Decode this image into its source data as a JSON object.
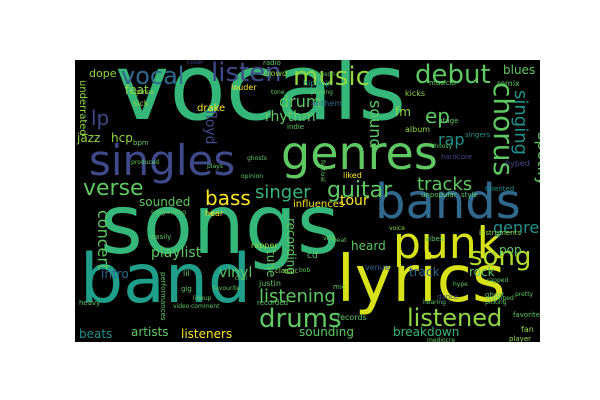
{
  "palette": {
    "background": "#000000",
    "page": "#ffffff",
    "green": "#35b779",
    "teal": "#21918c",
    "blue": "#31688e",
    "purple": "#443983",
    "yellow": "#d8e219",
    "lightgreen": "#90d743"
  },
  "words": [
    {
      "text": "vocals",
      "color": "#35b779"
    },
    {
      "text": "songs",
      "color": "#35b779"
    },
    {
      "text": "band",
      "color": "#1f9e89"
    },
    {
      "text": "lyrics",
      "color": "#d8e219"
    },
    {
      "text": "singles",
      "color": "#3e4a89"
    },
    {
      "text": "genres",
      "color": "#5ec962"
    },
    {
      "text": "bands",
      "color": "#31688e"
    },
    {
      "text": "punk",
      "color": "#d8e219"
    },
    {
      "text": "drums",
      "color": "#5ec962"
    },
    {
      "text": "listened",
      "color": "#90d743"
    },
    {
      "text": "chorus",
      "color": "#5ec962"
    },
    {
      "text": "debut",
      "color": "#5ec962"
    },
    {
      "text": "song",
      "color": "#b5de2b"
    },
    {
      "text": "music",
      "color": "#90d743"
    },
    {
      "text": "listen",
      "color": "#3e4a89"
    },
    {
      "text": "vocal",
      "color": "#31688e"
    },
    {
      "text": "guitar",
      "color": "#5ec962"
    },
    {
      "text": "verse",
      "color": "#5ec962"
    },
    {
      "text": "bass",
      "color": "#fde725"
    },
    {
      "text": "singer",
      "color": "#35b779"
    },
    {
      "text": "tracks",
      "color": "#5ec962"
    },
    {
      "text": "listening",
      "color": "#5ec962"
    },
    {
      "text": "singing",
      "color": "#21918c"
    },
    {
      "text": "spotify",
      "color": "#5ec962"
    },
    {
      "text": "rap",
      "color": "#21918c"
    },
    {
      "text": "ep",
      "color": "#5ec962"
    },
    {
      "text": "lp",
      "color": "#3e4a89"
    },
    {
      "text": "genre",
      "color": "#21918c"
    },
    {
      "text": "concert",
      "color": "#5ec962"
    },
    {
      "text": "drum",
      "color": "#5ec962"
    },
    {
      "text": "sound",
      "color": "#5ec962"
    },
    {
      "text": "tour",
      "color": "#fde725"
    },
    {
      "text": "rhythm",
      "color": "#5ec962"
    },
    {
      "text": "blues",
      "color": "#5ec962"
    },
    {
      "text": "rock",
      "color": "#5ec962"
    },
    {
      "text": "pop",
      "color": "#5ec962"
    },
    {
      "text": "playlist",
      "color": "#5ec962"
    },
    {
      "text": "breakdown",
      "color": "#35b779"
    },
    {
      "text": "intro",
      "color": "#31688e"
    },
    {
      "text": "vinyl",
      "color": "#5ec962"
    },
    {
      "text": "recording",
      "color": "#5ec962"
    },
    {
      "text": "tune",
      "color": "#5ec962"
    },
    {
      "text": "heard",
      "color": "#5ec962"
    },
    {
      "text": "beats",
      "color": "#21918c"
    },
    {
      "text": "artists",
      "color": "#5ec962"
    },
    {
      "text": "listeners",
      "color": "#fde725"
    },
    {
      "text": "sounded",
      "color": "#5ec962"
    },
    {
      "text": "sounding",
      "color": "#5ec962"
    },
    {
      "text": "records",
      "color": "#5ec962"
    },
    {
      "text": "track",
      "color": "#31688e"
    },
    {
      "text": "fm",
      "color": "#90d743"
    },
    {
      "text": "floyd",
      "color": "#3e4a89"
    },
    {
      "text": "dope",
      "color": "#90d743"
    },
    {
      "text": "jazz",
      "color": "#90d743"
    },
    {
      "text": "hcp",
      "color": "#90d743"
    },
    {
      "text": "influences",
      "color": "#fde725"
    },
    {
      "text": "album",
      "color": "#90d743"
    },
    {
      "text": "remix",
      "color": "#5ec962"
    },
    {
      "text": "anthem",
      "color": "#31688e"
    },
    {
      "text": "hiphop",
      "color": "#21918c"
    },
    {
      "text": "kicks",
      "color": "#90d743"
    },
    {
      "text": "crowd",
      "color": "#90d743"
    },
    {
      "text": "drake",
      "color": "#fde725"
    },
    {
      "text": "feat",
      "color": "#90d743"
    },
    {
      "text": "louder",
      "color": "#fde725"
    },
    {
      "text": "radio",
      "color": "#5ec962"
    },
    {
      "text": "hear",
      "color": "#fde725"
    },
    {
      "text": "rapper",
      "color": "#90d743"
    },
    {
      "text": "justin",
      "color": "#5ec962"
    },
    {
      "text": "mic",
      "color": "#5ec962"
    },
    {
      "text": "hardcore",
      "color": "#3e4a89"
    },
    {
      "text": "talented",
      "color": "#21918c"
    },
    {
      "text": "hyped",
      "color": "#3e4a89"
    },
    {
      "text": "underrated",
      "color": "#90d743"
    },
    {
      "text": "musical",
      "color": "#5ec962"
    },
    {
      "text": "fan",
      "color": "#90d743"
    },
    {
      "text": "favorite",
      "color": "#5ec962"
    },
    {
      "text": "player",
      "color": "#90d743"
    },
    {
      "text": "classic",
      "color": "#90d743"
    },
    {
      "text": "venue",
      "color": "#31688e"
    },
    {
      "text": "dance",
      "color": "#3e4a89"
    },
    {
      "text": "performances",
      "color": "#5ec962"
    },
    {
      "text": "instruments",
      "color": "#90d743"
    },
    {
      "text": "vibes",
      "color": "#5ec962"
    },
    {
      "text": "sick",
      "color": "#90d743"
    },
    {
      "text": "bpm",
      "color": "#5ec962"
    },
    {
      "text": "tone",
      "color": "#5ec962"
    },
    {
      "text": "singers",
      "color": "#21918c"
    },
    {
      "text": "playing",
      "color": "#5ec962"
    },
    {
      "text": "lil",
      "color": "#5ec962"
    },
    {
      "text": "gonna",
      "color": "#90d743"
    },
    {
      "text": "chill",
      "color": "#5ec962"
    },
    {
      "text": "cover",
      "color": "#3e4a89"
    },
    {
      "text": "gig",
      "color": "#5ec962"
    },
    {
      "text": "cd",
      "color": "#5ec962"
    },
    {
      "text": "bob",
      "color": "#5ec962"
    },
    {
      "text": "voice",
      "color": "#90d743"
    },
    {
      "text": "opinion",
      "color": "#5ec962"
    },
    {
      "text": "beat",
      "color": "#5ec962"
    },
    {
      "text": "ghost",
      "color": "#5ec962"
    },
    {
      "text": "indie",
      "color": "#5ec962"
    },
    {
      "text": "recorded",
      "color": "#5ec962"
    },
    {
      "text": "produced",
      "color": "#5ec962"
    },
    {
      "text": "ghosts",
      "color": "#5ec962"
    },
    {
      "text": "festival",
      "color": "#5ec962"
    },
    {
      "text": "mediocre",
      "color": "#5ec962"
    },
    {
      "text": "easily",
      "color": "#5ec962"
    },
    {
      "text": "lineup",
      "color": "#5ec962"
    },
    {
      "text": "heavy",
      "color": "#5ec962"
    },
    {
      "text": "vibe",
      "color": "#5ec962"
    },
    {
      "text": "hype",
      "color": "#5ec962"
    },
    {
      "text": "liked",
      "color": "#fde725"
    },
    {
      "text": "pumped",
      "color": "#5ec962"
    },
    {
      "text": "stage",
      "color": "#5ec962"
    },
    {
      "text": "rapped",
      "color": "#5ec962"
    },
    {
      "text": "pretty",
      "color": "#5ec962"
    },
    {
      "text": "unpopular",
      "color": "#5ec962"
    },
    {
      "text": "style",
      "color": "#5ec962"
    },
    {
      "text": "crimson",
      "color": "#5ec962"
    },
    {
      "text": "choosy",
      "color": "#5ec962"
    },
    {
      "text": "plays",
      "color": "#5ec962"
    },
    {
      "text": "video",
      "color": "#5ec962"
    },
    {
      "text": "comment",
      "color": "#5ec962"
    },
    {
      "text": "favourite",
      "color": "#5ec962"
    },
    {
      "text": "picking",
      "color": "#5ec962"
    },
    {
      "text": "hearing",
      "color": "#5ec962"
    },
    {
      "text": "songwriting",
      "color": "#5ec962"
    }
  ]
}
